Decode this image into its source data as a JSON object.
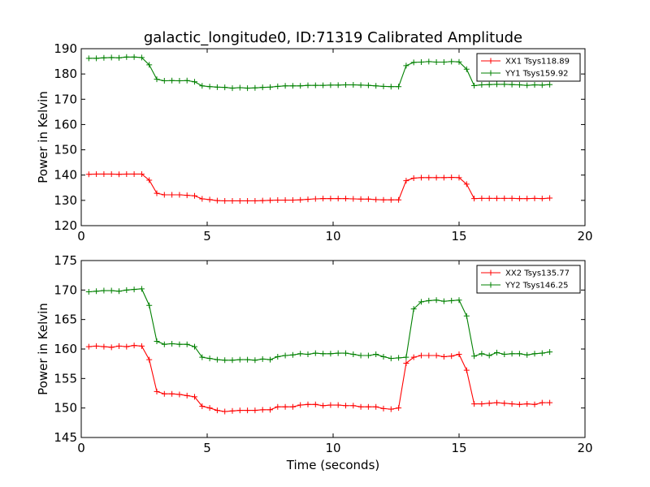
{
  "figure": {
    "title": "galactic_longitude0, ID:71319 Calibrated Amplitude",
    "xlabel": "Time (seconds)"
  },
  "chart_data": [
    {
      "type": "line",
      "title": "galactic_longitude0, ID:71319 Calibrated Amplitude",
      "xlabel": "",
      "ylabel": "Power in Kelvin",
      "xlim": [
        0,
        20
      ],
      "ylim": [
        120,
        190
      ],
      "xticks": [
        0,
        5,
        10,
        15,
        20
      ],
      "yticks": [
        120,
        130,
        140,
        150,
        160,
        170,
        180,
        190
      ],
      "grid": false,
      "legend": "top-right",
      "x": [
        0.3,
        0.6,
        0.9,
        1.2,
        1.5,
        1.8,
        2.1,
        2.4,
        2.7,
        3.0,
        3.3,
        3.6,
        3.9,
        4.2,
        4.5,
        4.8,
        5.1,
        5.4,
        5.7,
        6.0,
        6.3,
        6.6,
        6.9,
        7.2,
        7.5,
        7.8,
        8.1,
        8.4,
        8.7,
        9.0,
        9.3,
        9.6,
        9.9,
        10.2,
        10.5,
        10.8,
        11.1,
        11.4,
        11.7,
        12.0,
        12.3,
        12.6,
        12.9,
        13.2,
        13.5,
        13.8,
        14.1,
        14.4,
        14.7,
        15.0,
        15.3,
        15.6,
        15.9,
        16.2,
        16.5,
        16.8,
        17.1,
        17.4,
        17.7,
        18.0,
        18.3,
        18.6
      ],
      "series": [
        {
          "name": "XX1 Tsys118.89",
          "color": "#ff0000",
          "values": [
            140.3,
            140.4,
            140.4,
            140.4,
            140.3,
            140.4,
            140.4,
            140.4,
            138.0,
            132.8,
            132.2,
            132.2,
            132.2,
            132.0,
            131.8,
            130.6,
            130.3,
            129.9,
            129.8,
            129.8,
            129.8,
            129.8,
            129.8,
            129.9,
            130.0,
            130.1,
            130.1,
            130.1,
            130.2,
            130.4,
            130.6,
            130.7,
            130.7,
            130.7,
            130.7,
            130.6,
            130.5,
            130.5,
            130.3,
            130.2,
            130.2,
            130.2,
            137.8,
            138.8,
            139.0,
            139.0,
            139.0,
            139.0,
            139.1,
            139.0,
            136.4,
            130.7,
            130.8,
            130.8,
            130.8,
            130.8,
            130.8,
            130.7,
            130.7,
            130.8,
            130.7,
            130.9
          ]
        },
        {
          "name": "YY1 Tsys159.92",
          "color": "#008000",
          "values": [
            186.2,
            186.2,
            186.4,
            186.5,
            186.4,
            186.7,
            186.7,
            186.5,
            183.6,
            177.9,
            177.3,
            177.4,
            177.3,
            177.4,
            176.9,
            175.3,
            175.0,
            174.8,
            174.7,
            174.4,
            174.6,
            174.4,
            174.5,
            174.7,
            174.8,
            175.1,
            175.3,
            175.3,
            175.3,
            175.5,
            175.5,
            175.5,
            175.6,
            175.6,
            175.7,
            175.7,
            175.6,
            175.5,
            175.3,
            175.1,
            175.0,
            175.0,
            183.3,
            184.6,
            184.7,
            184.9,
            184.7,
            184.7,
            184.9,
            184.8,
            181.9,
            175.4,
            175.7,
            175.8,
            175.9,
            175.9,
            175.8,
            175.7,
            175.5,
            175.7,
            175.6,
            175.8
          ]
        }
      ]
    },
    {
      "type": "line",
      "title": "",
      "xlabel": "Time (seconds)",
      "ylabel": "Power in Kelvin",
      "xlim": [
        0,
        20
      ],
      "ylim": [
        145,
        175
      ],
      "xticks": [
        0,
        5,
        10,
        15,
        20
      ],
      "yticks": [
        145,
        150,
        155,
        160,
        165,
        170,
        175
      ],
      "grid": false,
      "legend": "top-right",
      "x": [
        0.3,
        0.6,
        0.9,
        1.2,
        1.5,
        1.8,
        2.1,
        2.4,
        2.7,
        3.0,
        3.3,
        3.6,
        3.9,
        4.2,
        4.5,
        4.8,
        5.1,
        5.4,
        5.7,
        6.0,
        6.3,
        6.6,
        6.9,
        7.2,
        7.5,
        7.8,
        8.1,
        8.4,
        8.7,
        9.0,
        9.3,
        9.6,
        9.9,
        10.2,
        10.5,
        10.8,
        11.1,
        11.4,
        11.7,
        12.0,
        12.3,
        12.6,
        12.9,
        13.2,
        13.5,
        13.8,
        14.1,
        14.4,
        14.7,
        15.0,
        15.3,
        15.6,
        15.9,
        16.2,
        16.5,
        16.8,
        17.1,
        17.4,
        17.7,
        18.0,
        18.3,
        18.6
      ],
      "series": [
        {
          "name": "XX2 Tsys135.77",
          "color": "#ff0000",
          "values": [
            160.4,
            160.5,
            160.4,
            160.3,
            160.5,
            160.4,
            160.6,
            160.5,
            158.2,
            152.8,
            152.4,
            152.4,
            152.3,
            152.1,
            151.9,
            150.3,
            150.0,
            149.6,
            149.4,
            149.5,
            149.6,
            149.6,
            149.6,
            149.7,
            149.7,
            150.2,
            150.2,
            150.2,
            150.5,
            150.6,
            150.6,
            150.4,
            150.5,
            150.5,
            150.4,
            150.4,
            150.2,
            150.2,
            150.2,
            149.9,
            149.8,
            150.0,
            157.6,
            158.6,
            158.9,
            158.9,
            158.9,
            158.7,
            158.8,
            159.1,
            156.4,
            150.7,
            150.7,
            150.8,
            150.9,
            150.8,
            150.7,
            150.6,
            150.7,
            150.6,
            150.9,
            150.9
          ]
        },
        {
          "name": "YY2 Tsys146.25",
          "color": "#008000",
          "values": [
            169.7,
            169.8,
            169.9,
            169.9,
            169.8,
            170.0,
            170.1,
            170.2,
            167.4,
            161.3,
            160.8,
            160.9,
            160.8,
            160.8,
            160.4,
            158.6,
            158.4,
            158.2,
            158.1,
            158.1,
            158.2,
            158.2,
            158.1,
            158.3,
            158.2,
            158.7,
            158.9,
            159.0,
            159.2,
            159.1,
            159.3,
            159.2,
            159.2,
            159.3,
            159.3,
            159.1,
            158.9,
            158.9,
            159.1,
            158.7,
            158.4,
            158.5,
            158.6,
            166.8,
            168.0,
            168.2,
            168.3,
            168.1,
            168.2,
            168.3,
            165.6,
            158.8,
            159.2,
            158.9,
            159.4,
            159.1,
            159.2,
            159.2,
            159.0,
            159.2,
            159.3,
            159.5
          ]
        }
      ]
    }
  ]
}
